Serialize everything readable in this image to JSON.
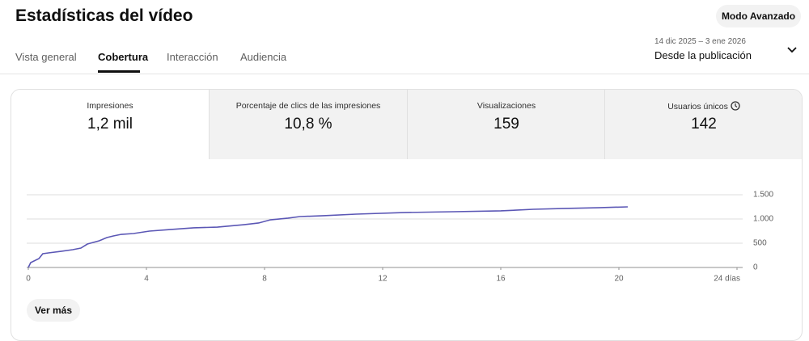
{
  "header": {
    "title": "Estadísticas del vídeo",
    "advanced_button": "Modo Avanzado"
  },
  "tabs": [
    "Vista general",
    "Cobertura",
    "Interacción",
    "Audiencia"
  ],
  "date_range": {
    "dates": "14 dic 2025 – 3 ene 2026",
    "label": "Desde la publicación"
  },
  "metrics": [
    {
      "label": "Impresiones",
      "value": "1,2 mil"
    },
    {
      "label": "Porcentaje de clics de las impresiones",
      "value": "10,8 %"
    },
    {
      "label": "Visualizaciones",
      "value": 159
    },
    {
      "label": "Usuarios únicos",
      "value": 142
    }
  ],
  "chart_data": {
    "type": "line",
    "x": [
      0,
      0.08,
      0.36,
      0.49,
      0.68,
      1.1,
      1.5,
      1.78,
      2.0,
      2.4,
      2.66,
      2.88,
      3.15,
      3.56,
      4.1,
      4.8,
      5.6,
      6.4,
      7.3,
      7.8,
      8.2,
      8.8,
      9.2,
      10.0,
      11.1,
      12.7,
      14.4,
      16.0,
      17.1,
      18.2,
      19.3,
      20.3
    ],
    "series": [
      {
        "color": "#5b57b5",
        "values": [
          0,
          100,
          183,
          283,
          300,
          333,
          367,
          400,
          483,
          550,
          617,
          650,
          683,
          700,
          750,
          783,
          817,
          833,
          883,
          917,
          983,
          1017,
          1050,
          1067,
          1100,
          1133,
          1150,
          1167,
          1200,
          1217,
          1233,
          1250
        ]
      }
    ],
    "xlim": [
      0,
      24
    ],
    "xticks": [
      0,
      4,
      8,
      12,
      16,
      20,
      {
        "value": 24,
        "label": "24 días"
      }
    ],
    "ylim": [
      0,
      1500
    ],
    "yticks": [
      0,
      500,
      {
        "value": 1000,
        "label": "1.000"
      },
      {
        "value": 1500,
        "label": "1.500"
      }
    ],
    "grid": true
  },
  "more_button": "Ver más"
}
